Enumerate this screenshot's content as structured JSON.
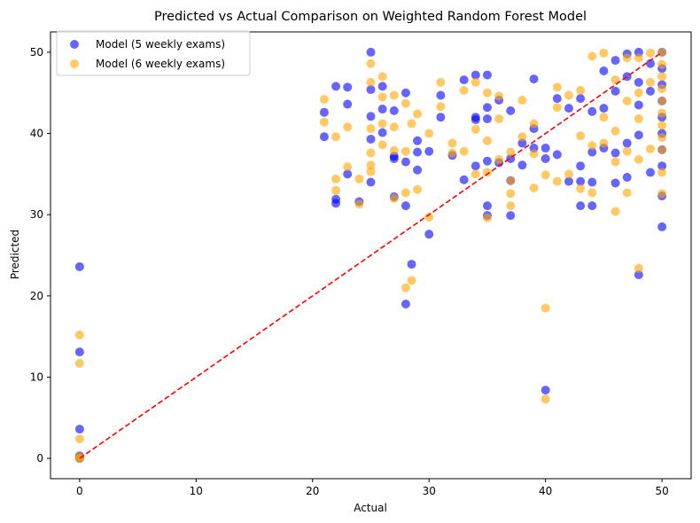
{
  "chart_data": {
    "type": "scatter",
    "title": "Predicted vs Actual Comparison on Weighted Random Forest Model",
    "xlabel": "Actual",
    "ylabel": "Predicted",
    "xlim": [
      -2.5,
      52.5
    ],
    "ylim": [
      -2.5,
      52.5
    ],
    "xticks": [
      0,
      10,
      20,
      30,
      40,
      50
    ],
    "yticks": [
      0,
      10,
      20,
      30,
      40,
      50
    ],
    "grid": false,
    "legend_position": "top-left",
    "reference_line": {
      "x": [
        0,
        50
      ],
      "y": [
        0,
        50
      ],
      "color": "#ff0000",
      "style": "dashed"
    },
    "series": [
      {
        "name": "Model (5 weekly exams)",
        "color": "#0000ff",
        "x": [
          0,
          0,
          0,
          0,
          0,
          0,
          0,
          21,
          21,
          22,
          22,
          22,
          23,
          23,
          23,
          24,
          25,
          25,
          25,
          25,
          25,
          26,
          26,
          26,
          27,
          27,
          27,
          27,
          28,
          28,
          28,
          28,
          28.5,
          29,
          29,
          29,
          30,
          30,
          31,
          31,
          32,
          33,
          33,
          34,
          34,
          34,
          34,
          35,
          35,
          35,
          35,
          35,
          35,
          36,
          36,
          37,
          37,
          37,
          37,
          38,
          38,
          39,
          39,
          39,
          40,
          40,
          40,
          41,
          41,
          42,
          42,
          43,
          43,
          43,
          43,
          44,
          44,
          44,
          44,
          45,
          45,
          45,
          46,
          46,
          46,
          46,
          47,
          47,
          47,
          47,
          48,
          48,
          48,
          48,
          48,
          49,
          49,
          49,
          50,
          50,
          50,
          50,
          50,
          50,
          50,
          50,
          50,
          50
        ],
        "y": [
          23.6,
          13.1,
          3.6,
          0.3,
          0.1,
          0.0,
          0.2,
          42.6,
          39.6,
          45.8,
          31.9,
          31.4,
          45.7,
          43.6,
          35.0,
          31.6,
          50.0,
          45.4,
          42.1,
          39.3,
          34.0,
          45.8,
          43.0,
          40.1,
          42.8,
          37.2,
          36.9,
          32.2,
          45.0,
          36.5,
          31.1,
          19.0,
          23.9,
          39.1,
          37.7,
          35.5,
          37.8,
          27.6,
          44.7,
          42.0,
          37.3,
          46.6,
          34.3,
          47.2,
          42.0,
          36.0,
          41.7,
          47.2,
          43.2,
          41.8,
          36.6,
          31.1,
          29.9,
          44.1,
          36.4,
          42.8,
          36.9,
          34.2,
          29.9,
          38.8,
          36.1,
          46.7,
          40.6,
          38.2,
          8.4,
          38.2,
          36.9,
          44.3,
          37.4,
          43.1,
          34.1,
          44.3,
          36.0,
          34.1,
          31.1,
          42.7,
          37.7,
          34.0,
          31.1,
          47.7,
          43.1,
          38.2,
          49.0,
          45.2,
          37.6,
          33.9,
          49.8,
          47.0,
          38.8,
          34.6,
          50.0,
          46.3,
          43.5,
          39.8,
          22.6,
          48.6,
          45.2,
          35.2,
          50.0,
          48.0,
          46.0,
          44.0,
          42.0,
          40.0,
          38.0,
          36.0,
          32.3,
          28.5
        ]
      },
      {
        "name": "Model (6 weekly exams)",
        "color": "#ffa500",
        "x": [
          0,
          0,
          0,
          0,
          0,
          0,
          21,
          21,
          22,
          22,
          22,
          23,
          23,
          24,
          24,
          25,
          25,
          25,
          25,
          25,
          25,
          26,
          26,
          26,
          26,
          27,
          27,
          27,
          27,
          28,
          28,
          28,
          28,
          28.5,
          28.5,
          29,
          29,
          30,
          30,
          31,
          31,
          32,
          32,
          33,
          33,
          34,
          34,
          34,
          35,
          35,
          35,
          35,
          36,
          36,
          36,
          37,
          37,
          37,
          37,
          38,
          38,
          39,
          39,
          39,
          40,
          40,
          40,
          41,
          41,
          41,
          42,
          42,
          43,
          43,
          43,
          44,
          44,
          44,
          45,
          45,
          45,
          46,
          46,
          46,
          46,
          47,
          47,
          47,
          47,
          48,
          48,
          48,
          48,
          48,
          49,
          49,
          49,
          50,
          50,
          50,
          50,
          50,
          50,
          50,
          50,
          50,
          50,
          50
        ],
        "y": [
          15.2,
          11.7,
          2.4,
          0.2,
          0.0,
          0.1,
          44.2,
          41.4,
          39.6,
          34.4,
          33.0,
          40.8,
          35.9,
          34.4,
          31.3,
          48.6,
          46.3,
          40.6,
          37.6,
          36.1,
          35.3,
          47.0,
          44.5,
          41.2,
          38.6,
          44.7,
          40.8,
          37.9,
          32.0,
          43.7,
          37.8,
          32.7,
          21.0,
          41.2,
          21.9,
          42.4,
          33.1,
          40.0,
          29.7,
          46.3,
          43.3,
          38.8,
          37.6,
          45.3,
          37.8,
          46.3,
          40.5,
          35.0,
          45.0,
          39.1,
          35.2,
          29.6,
          44.6,
          41.8,
          36.8,
          37.7,
          34.2,
          32.6,
          31.1,
          44.1,
          39.6,
          41.2,
          37.5,
          33.3,
          18.5,
          34.9,
          7.3,
          45.7,
          43.2,
          34.1,
          44.7,
          35.0,
          45.3,
          39.7,
          33.2,
          49.5,
          38.5,
          32.7,
          49.9,
          42.0,
          38.8,
          46.6,
          40.3,
          36.5,
          30.4,
          49.3,
          44.0,
          37.8,
          32.7,
          49.3,
          45.0,
          41.8,
          36.8,
          23.4,
          49.9,
          46.3,
          38.1,
          50.0,
          48.5,
          47.0,
          45.5,
          44.0,
          42.5,
          41.0,
          39.5,
          38.0,
          35.2,
          32.6
        ]
      }
    ]
  }
}
